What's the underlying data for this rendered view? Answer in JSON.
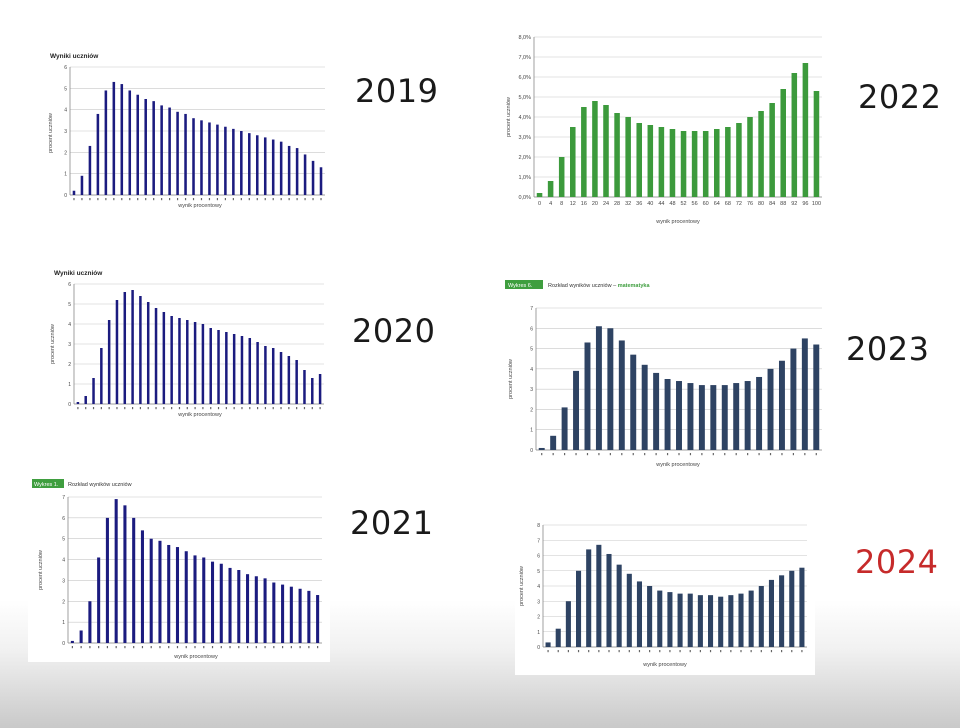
{
  "colors": {
    "navy": "#1b1b7f",
    "green": "#3c9a3c",
    "slate": "#2e4363",
    "accent_red": "#c62a2a",
    "badge_green": "#3f9e3f"
  },
  "labels": {
    "y_axis": "procent uczniów",
    "x_axis": "wynik procentowy",
    "chart_title": "Wyniki uczniów",
    "badge_2021": "Wykres 1.",
    "caption_2021": "Rozkład wyników uczniów",
    "badge_2023": "Wykres 6.",
    "caption_2023": "Rozkład wyników uczniów –",
    "caption_2023_accent": "matematyka"
  },
  "years": {
    "y2019": "2019",
    "y2020": "2020",
    "y2021": "2021",
    "y2022": "2022",
    "y2023": "2023",
    "y2024": "2024"
  },
  "chart_data": [
    {
      "id": "c2019",
      "type": "bar",
      "title": "Wyniki uczniów",
      "ylabel": "procent uczniów",
      "xlabel": "wynik procentowy",
      "ylim": [
        0,
        6
      ],
      "yticks": [
        "0",
        "1",
        "2",
        "3",
        "4",
        "5",
        "6"
      ],
      "values": [
        0.2,
        0.9,
        2.3,
        3.8,
        4.9,
        5.3,
        5.2,
        4.9,
        4.7,
        4.5,
        4.4,
        4.2,
        4.1,
        3.9,
        3.8,
        3.6,
        3.5,
        3.4,
        3.3,
        3.2,
        3.1,
        3.0,
        2.9,
        2.8,
        2.7,
        2.6,
        2.5,
        2.3,
        2.2,
        1.9,
        1.6,
        1.3
      ]
    },
    {
      "id": "c2020",
      "type": "bar",
      "title": "Wyniki uczniów",
      "ylabel": "procent uczniów",
      "xlabel": "wynik procentowy",
      "ylim": [
        0,
        6
      ],
      "yticks": [
        "0",
        "1",
        "2",
        "3",
        "4",
        "5",
        "6"
      ],
      "values": [
        0.1,
        0.4,
        1.3,
        2.8,
        4.2,
        5.2,
        5.6,
        5.7,
        5.4,
        5.1,
        4.8,
        4.6,
        4.4,
        4.3,
        4.2,
        4.1,
        4.0,
        3.8,
        3.7,
        3.6,
        3.5,
        3.4,
        3.3,
        3.1,
        2.9,
        2.8,
        2.6,
        2.4,
        2.2,
        1.7,
        1.3,
        1.5
      ]
    },
    {
      "id": "c2021",
      "type": "bar",
      "ylabel": "procent uczniów",
      "xlabel": "wynik procentowy",
      "ylim": [
        0,
        7
      ],
      "yticks": [
        "0",
        "1",
        "2",
        "3",
        "4",
        "5",
        "6",
        "7"
      ],
      "values": [
        0.1,
        0.6,
        2.0,
        4.1,
        6.0,
        6.9,
        6.6,
        6.0,
        5.4,
        5.0,
        4.9,
        4.7,
        4.6,
        4.4,
        4.2,
        4.1,
        3.9,
        3.8,
        3.6,
        3.5,
        3.3,
        3.2,
        3.1,
        2.9,
        2.8,
        2.7,
        2.6,
        2.5,
        2.3
      ]
    },
    {
      "id": "c2022",
      "type": "bar",
      "ylabel": "procent uczniów",
      "xlabel": "wynik procentowy",
      "ylim": [
        0,
        8
      ],
      "yticks": [
        "0,0%",
        "1,0%",
        "2,0%",
        "3,0%",
        "4,0%",
        "5,0%",
        "6,0%",
        "7,0%",
        "8,0%"
      ],
      "categories": [
        "0",
        "4",
        "8",
        "12",
        "16",
        "20",
        "24",
        "28",
        "32",
        "36",
        "40",
        "44",
        "48",
        "52",
        "56",
        "60",
        "64",
        "68",
        "72",
        "76",
        "80",
        "84",
        "88",
        "92",
        "96",
        "100"
      ],
      "values": [
        0.2,
        0.8,
        2.0,
        3.5,
        4.5,
        4.8,
        4.6,
        4.2,
        4.0,
        3.7,
        3.6,
        3.5,
        3.4,
        3.3,
        3.3,
        3.3,
        3.4,
        3.5,
        3.7,
        4.0,
        4.3,
        4.7,
        5.4,
        6.2,
        6.7,
        5.3
      ]
    },
    {
      "id": "c2023",
      "type": "bar",
      "ylabel": "procent uczniów",
      "xlabel": "wynik procentowy",
      "ylim": [
        0,
        7
      ],
      "yticks": [
        "0",
        "1",
        "2",
        "3",
        "4",
        "5",
        "6",
        "7"
      ],
      "values": [
        0.1,
        0.7,
        2.1,
        3.9,
        5.3,
        6.1,
        6.0,
        5.4,
        4.7,
        4.2,
        3.8,
        3.5,
        3.4,
        3.3,
        3.2,
        3.2,
        3.2,
        3.3,
        3.4,
        3.6,
        4.0,
        4.4,
        5.0,
        5.5,
        5.2
      ]
    },
    {
      "id": "c2024",
      "type": "bar",
      "ylabel": "procent uczniów",
      "xlabel": "wynik procentowy",
      "ylim": [
        0,
        8
      ],
      "yticks": [
        "0",
        "1",
        "2",
        "3",
        "4",
        "5",
        "6",
        "7",
        "8"
      ],
      "values": [
        0.3,
        1.2,
        3.0,
        5.0,
        6.4,
        6.7,
        6.1,
        5.4,
        4.8,
        4.3,
        4.0,
        3.7,
        3.6,
        3.5,
        3.5,
        3.4,
        3.4,
        3.3,
        3.4,
        3.5,
        3.7,
        4.0,
        4.4,
        4.7,
        5.0,
        5.2
      ]
    }
  ]
}
